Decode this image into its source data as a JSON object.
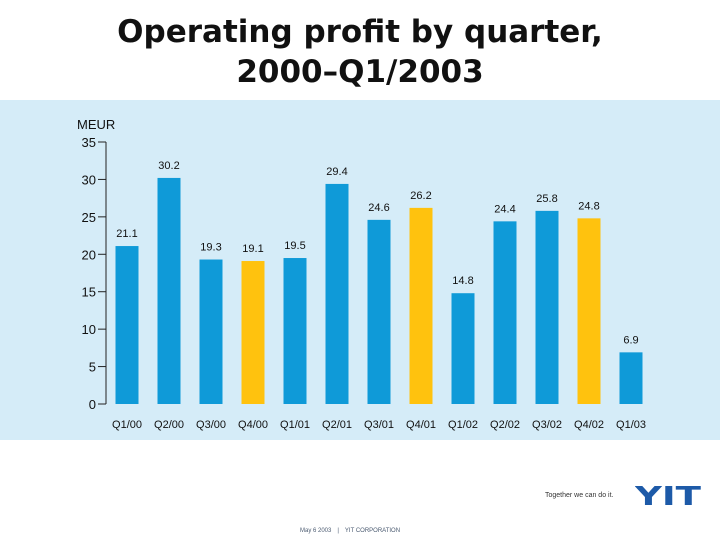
{
  "title": {
    "line1": "Operating profit by quarter,",
    "line2": "2000–Q1/2003"
  },
  "chart_data": {
    "type": "bar",
    "ylabel": "MEUR",
    "ylim": [
      0,
      35
    ],
    "yticks": [
      0,
      5,
      10,
      15,
      20,
      25,
      30,
      35
    ],
    "grid": false,
    "categories": [
      "Q1/00",
      "Q2/00",
      "Q3/00",
      "Q4/00",
      "Q1/01",
      "Q2/01",
      "Q3/01",
      "Q4/01",
      "Q1/02",
      "Q2/02",
      "Q3/02",
      "Q4/02",
      "Q1/03"
    ],
    "values": [
      21.1,
      30.2,
      19.3,
      19.1,
      19.5,
      29.4,
      24.6,
      26.2,
      14.8,
      24.4,
      25.8,
      24.8,
      6.9
    ],
    "value_labels": [
      "21.1",
      "30.2",
      "19.3",
      "19.1",
      "19.5",
      "29.4",
      "24.6",
      "26.2",
      "14.8",
      "24.4",
      "25.8",
      "24.8",
      "6.9"
    ],
    "colors": {
      "default": "#0f9ad8",
      "highlight": "#ffc20e"
    },
    "highlighted_categories": [
      "Q4/00",
      "Q4/01",
      "Q4/02"
    ]
  },
  "footer": {
    "slogan": "Together we can do it.",
    "logo_text": "YIT",
    "date": "May 6 2003",
    "separator": "|",
    "company": "YIT CORPORATION"
  }
}
